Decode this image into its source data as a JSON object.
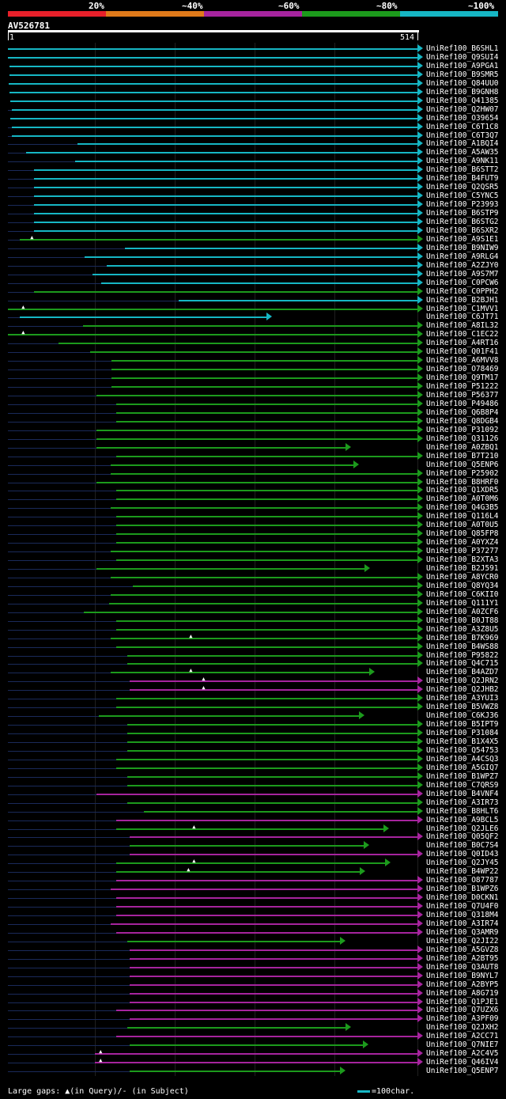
{
  "legend": {
    "labels": [
      "20%",
      "~40%",
      "~60%",
      "~80%",
      "~100%"
    ],
    "colors": [
      "#e8202a",
      "#e07a1a",
      "#a6249e",
      "#1c9a1c",
      "#16b6c4"
    ]
  },
  "query": {
    "id": "AV526781",
    "start": "1",
    "end": "514",
    "length": 514
  },
  "footer": {
    "gaps_text": "Large gaps: ▲(in Query)/- (in Subject)",
    "scale_text": "=100char."
  },
  "hits": [
    {
      "label": "UniRef100_B6SHL1",
      "s": 1,
      "e": 514,
      "c": "cyan"
    },
    {
      "label": "UniRef100_Q9SUI4",
      "s": 1,
      "e": 514,
      "c": "cyan"
    },
    {
      "label": "UniRef100_A9PGA1",
      "s": 3,
      "e": 514,
      "c": "cyan"
    },
    {
      "label": "UniRef100_B9SMR5",
      "s": 3,
      "e": 514,
      "c": "cyan"
    },
    {
      "label": "UniRef100_Q84UU0",
      "s": 2,
      "e": 514,
      "c": "cyan"
    },
    {
      "label": "UniRef100_B9GNH8",
      "s": 3,
      "e": 514,
      "c": "cyan"
    },
    {
      "label": "UniRef100_Q41385",
      "s": 4,
      "e": 514,
      "c": "cyan"
    },
    {
      "label": "UniRef100_Q2HW07",
      "s": 6,
      "e": 514,
      "c": "cyan"
    },
    {
      "label": "UniRef100_O39654",
      "s": 4,
      "e": 514,
      "c": "cyan"
    },
    {
      "label": "UniRef100_C6T1C8",
      "s": 6,
      "e": 514,
      "c": "cyan"
    },
    {
      "label": "UniRef100_C6T3Q7",
      "s": 6,
      "e": 514,
      "c": "cyan"
    },
    {
      "label": "UniRef100_A1BQI4",
      "s": 88,
      "e": 514,
      "c": "cyan"
    },
    {
      "label": "UniRef100_A5AW35",
      "s": 24,
      "e": 514,
      "c": "cyan"
    },
    {
      "label": "UniRef100_A9NK11",
      "s": 85,
      "e": 514,
      "c": "cyan"
    },
    {
      "label": "UniRef100_B6STT2",
      "s": 34,
      "e": 514,
      "c": "cyan"
    },
    {
      "label": "UniRef100_B4FUT9",
      "s": 34,
      "e": 514,
      "c": "cyan"
    },
    {
      "label": "UniRef100_Q2QSR5",
      "s": 34,
      "e": 514,
      "c": "cyan"
    },
    {
      "label": "UniRef100_C5YNC5",
      "s": 34,
      "e": 514,
      "c": "cyan"
    },
    {
      "label": "UniRef100_P23993",
      "s": 34,
      "e": 514,
      "c": "cyan"
    },
    {
      "label": "UniRef100_B6STP9",
      "s": 34,
      "e": 514,
      "c": "cyan"
    },
    {
      "label": "UniRef100_B6STG2",
      "s": 34,
      "e": 514,
      "c": "cyan"
    },
    {
      "label": "UniRef100_B6SXR2",
      "s": 34,
      "e": 514,
      "c": "cyan"
    },
    {
      "label": "UniRef100_A9S1E1",
      "s": 16,
      "e": 514,
      "c": "green",
      "gap": 32
    },
    {
      "label": "UniRef100_B9NIW9",
      "s": 148,
      "e": 514,
      "c": "cyan"
    },
    {
      "label": "UniRef100_A9RLG4",
      "s": 97,
      "e": 514,
      "c": "cyan"
    },
    {
      "label": "UniRef100_A2ZJY0",
      "s": 125,
      "e": 514,
      "c": "cyan"
    },
    {
      "label": "UniRef100_A9S7M7",
      "s": 107,
      "e": 514,
      "c": "cyan"
    },
    {
      "label": "UniRef100_C0PCW6",
      "s": 118,
      "e": 514,
      "c": "cyan"
    },
    {
      "label": "UniRef100_C0PPH2",
      "s": 34,
      "e": 514,
      "c": "green"
    },
    {
      "label": "UniRef100_B2BJH1",
      "s": 215,
      "e": 514,
      "c": "cyan"
    },
    {
      "label": "UniRef100_C1MVV1",
      "s": 1,
      "e": 514,
      "c": "green",
      "gap": 21
    },
    {
      "label": "UniRef100_C6JT71",
      "s": 16,
      "e": 325,
      "c": "cyan"
    },
    {
      "label": "UniRef100_A8IL32",
      "s": 95,
      "e": 514,
      "c": "green"
    },
    {
      "label": "UniRef100_C1EC22",
      "s": 1,
      "e": 514,
      "c": "green",
      "gap": 21
    },
    {
      "label": "UniRef100_A4RT16",
      "s": 64,
      "e": 514,
      "c": "green"
    },
    {
      "label": "UniRef100_Q01F41",
      "s": 104,
      "e": 514,
      "c": "green"
    },
    {
      "label": "UniRef100_A6MVV8",
      "s": 131,
      "e": 514,
      "c": "green"
    },
    {
      "label": "UniRef100_O78469",
      "s": 131,
      "e": 514,
      "c": "green"
    },
    {
      "label": "UniRef100_Q9TM17",
      "s": 131,
      "e": 514,
      "c": "green"
    },
    {
      "label": "UniRef100_P51222",
      "s": 131,
      "e": 514,
      "c": "green"
    },
    {
      "label": "UniRef100_P56377",
      "s": 112,
      "e": 514,
      "c": "green"
    },
    {
      "label": "UniRef100_P49486",
      "s": 137,
      "e": 514,
      "c": "green"
    },
    {
      "label": "UniRef100_Q6B8P4",
      "s": 137,
      "e": 514,
      "c": "green"
    },
    {
      "label": "UniRef100_Q8DGB4",
      "s": 137,
      "e": 514,
      "c": "green"
    },
    {
      "label": "UniRef100_P31092",
      "s": 112,
      "e": 514,
      "c": "green"
    },
    {
      "label": "UniRef100_Q31126",
      "s": 112,
      "e": 514,
      "c": "green"
    },
    {
      "label": "UniRef100_A0ZBQ1",
      "s": 112,
      "e": 424,
      "c": "green"
    },
    {
      "label": "UniRef100_B7T210",
      "s": 137,
      "e": 514,
      "c": "green"
    },
    {
      "label": "UniRef100_Q5ENP6",
      "s": 130,
      "e": 434,
      "c": "green"
    },
    {
      "label": "UniRef100_P25902",
      "s": 130,
      "e": 514,
      "c": "green"
    },
    {
      "label": "UniRef100_B8HRF0",
      "s": 112,
      "e": 514,
      "c": "green"
    },
    {
      "label": "UniRef100_Q1XDR5",
      "s": 137,
      "e": 514,
      "c": "green"
    },
    {
      "label": "UniRef100_A0T0M6",
      "s": 137,
      "e": 514,
      "c": "green"
    },
    {
      "label": "UniRef100_Q4G3B5",
      "s": 130,
      "e": 514,
      "c": "green"
    },
    {
      "label": "UniRef100_Q116L4",
      "s": 137,
      "e": 514,
      "c": "green"
    },
    {
      "label": "UniRef100_A0T0U5",
      "s": 137,
      "e": 514,
      "c": "green"
    },
    {
      "label": "UniRef100_Q85FP8",
      "s": 137,
      "e": 514,
      "c": "green"
    },
    {
      "label": "UniRef100_A0YXZ4",
      "s": 137,
      "e": 514,
      "c": "green"
    },
    {
      "label": "UniRef100_P37277",
      "s": 130,
      "e": 514,
      "c": "green"
    },
    {
      "label": "UniRef100_B2XTA3",
      "s": 137,
      "e": 514,
      "c": "green"
    },
    {
      "label": "UniRef100_B2J591",
      "s": 112,
      "e": 448,
      "c": "green"
    },
    {
      "label": "UniRef100_A8YCR0",
      "s": 130,
      "e": 514,
      "c": "green"
    },
    {
      "label": "UniRef100_Q8YQ34",
      "s": 157,
      "e": 514,
      "c": "green"
    },
    {
      "label": "UniRef100_C6KII0",
      "s": 130,
      "e": 514,
      "c": "green"
    },
    {
      "label": "UniRef100_Q111Y1",
      "s": 128,
      "e": 514,
      "c": "green"
    },
    {
      "label": "UniRef100_A0ZCF6",
      "s": 96,
      "e": 514,
      "c": "green"
    },
    {
      "label": "UniRef100_B0JT88",
      "s": 137,
      "e": 514,
      "c": "green"
    },
    {
      "label": "UniRef100_A3Z8U5",
      "s": 137,
      "e": 514,
      "c": "green"
    },
    {
      "label": "UniRef100_B7K969",
      "s": 130,
      "e": 514,
      "c": "green",
      "gap": 231
    },
    {
      "label": "UniRef100_B4WS88",
      "s": 137,
      "e": 514,
      "c": "green"
    },
    {
      "label": "UniRef100_P95822",
      "s": 151,
      "e": 514,
      "c": "green"
    },
    {
      "label": "UniRef100_Q4C715",
      "s": 151,
      "e": 514,
      "c": "green"
    },
    {
      "label": "UniRef100_B4AZD7",
      "s": 130,
      "e": 454,
      "c": "green",
      "gap": 231
    },
    {
      "label": "UniRef100_Q2JRN2",
      "s": 154,
      "e": 514,
      "c": "magenta",
      "gap": 247
    },
    {
      "label": "UniRef100_Q2JHB2",
      "s": 154,
      "e": 514,
      "c": "magenta",
      "gap": 247
    },
    {
      "label": "UniRef100_A3YUI3",
      "s": 137,
      "e": 514,
      "c": "green"
    },
    {
      "label": "UniRef100_B5VWZ8",
      "s": 137,
      "e": 514,
      "c": "green"
    },
    {
      "label": "UniRef100_C6KJ36",
      "s": 115,
      "e": 441,
      "c": "green"
    },
    {
      "label": "UniRef100_B5IPT9",
      "s": 151,
      "e": 514,
      "c": "green"
    },
    {
      "label": "UniRef100_P31084",
      "s": 151,
      "e": 514,
      "c": "green"
    },
    {
      "label": "UniRef100_B1X4X5",
      "s": 151,
      "e": 514,
      "c": "green"
    },
    {
      "label": "UniRef100_Q54753",
      "s": 151,
      "e": 514,
      "c": "green"
    },
    {
      "label": "UniRef100_A4CSQ3",
      "s": 137,
      "e": 514,
      "c": "green"
    },
    {
      "label": "UniRef100_A5GIQ7",
      "s": 137,
      "e": 514,
      "c": "green"
    },
    {
      "label": "UniRef100_B1WPZ7",
      "s": 151,
      "e": 514,
      "c": "green"
    },
    {
      "label": "UniRef100_C7QRS9",
      "s": 151,
      "e": 514,
      "c": "green"
    },
    {
      "label": "UniRef100_B4VNF4",
      "s": 112,
      "e": 514,
      "c": "magenta"
    },
    {
      "label": "UniRef100_A3IR73",
      "s": 151,
      "e": 514,
      "c": "green"
    },
    {
      "label": "UniRef100_B8HLT6",
      "s": 171,
      "e": 514,
      "c": "green"
    },
    {
      "label": "UniRef100_A9BCL5",
      "s": 137,
      "e": 514,
      "c": "magenta"
    },
    {
      "label": "UniRef100_Q2JLE6",
      "s": 137,
      "e": 471,
      "c": "green",
      "gap": 235
    },
    {
      "label": "UniRef100_Q05QF2",
      "s": 154,
      "e": 514,
      "c": "magenta"
    },
    {
      "label": "UniRef100_B0C7S4",
      "s": 154,
      "e": 447,
      "c": "green"
    },
    {
      "label": "UniRef100_Q0ID43",
      "s": 154,
      "e": 514,
      "c": "magenta"
    },
    {
      "label": "UniRef100_Q2JY45",
      "s": 137,
      "e": 473,
      "c": "green",
      "gap": 235
    },
    {
      "label": "UniRef100_B4WP22",
      "s": 137,
      "e": 442,
      "c": "green",
      "gap": 228
    },
    {
      "label": "UniRef100_O87787",
      "s": 137,
      "e": 514,
      "c": "magenta"
    },
    {
      "label": "UniRef100_B1WPZ6",
      "s": 130,
      "e": 514,
      "c": "magenta"
    },
    {
      "label": "UniRef100_D0CKN1",
      "s": 137,
      "e": 514,
      "c": "magenta"
    },
    {
      "label": "UniRef100_Q7U4F0",
      "s": 137,
      "e": 514,
      "c": "magenta"
    },
    {
      "label": "UniRef100_Q318M4",
      "s": 137,
      "e": 514,
      "c": "magenta"
    },
    {
      "label": "UniRef100_A3IR74",
      "s": 130,
      "e": 514,
      "c": "magenta"
    },
    {
      "label": "UniRef100_Q3AMR9",
      "s": 137,
      "e": 514,
      "c": "magenta"
    },
    {
      "label": "UniRef100_Q2JI22",
      "s": 151,
      "e": 417,
      "c": "green"
    },
    {
      "label": "UniRef100_A5GVZ8",
      "s": 154,
      "e": 514,
      "c": "magenta"
    },
    {
      "label": "UniRef100_A2BT95",
      "s": 154,
      "e": 514,
      "c": "magenta"
    },
    {
      "label": "UniRef100_Q3AUT8",
      "s": 154,
      "e": 514,
      "c": "magenta"
    },
    {
      "label": "UniRef100_B9NYL7",
      "s": 154,
      "e": 514,
      "c": "magenta"
    },
    {
      "label": "UniRef100_A2BYP5",
      "s": 154,
      "e": 514,
      "c": "magenta"
    },
    {
      "label": "UniRef100_A8G719",
      "s": 154,
      "e": 514,
      "c": "magenta"
    },
    {
      "label": "UniRef100_Q1PJE1",
      "s": 154,
      "e": 514,
      "c": "magenta"
    },
    {
      "label": "UniRef100_Q7UZX6",
      "s": 137,
      "e": 514,
      "c": "magenta"
    },
    {
      "label": "UniRef100_A3PF09",
      "s": 154,
      "e": 514,
      "c": "magenta"
    },
    {
      "label": "UniRef100_Q2JXH2",
      "s": 151,
      "e": 424,
      "c": "green"
    },
    {
      "label": "UniRef100_A2CC71",
      "s": 137,
      "e": 514,
      "c": "magenta"
    },
    {
      "label": "UniRef100_Q7NIE7",
      "s": 154,
      "e": 446,
      "c": "green"
    },
    {
      "label": "UniRef100_A2C4V5",
      "s": 110,
      "e": 514,
      "c": "magenta",
      "gap": 118
    },
    {
      "label": "UniRef100_Q46IV4",
      "s": 110,
      "e": 514,
      "c": "magenta",
      "gap": 118
    },
    {
      "label": "UniRef100_Q5ENP7",
      "s": 154,
      "e": 417,
      "c": "green"
    }
  ]
}
